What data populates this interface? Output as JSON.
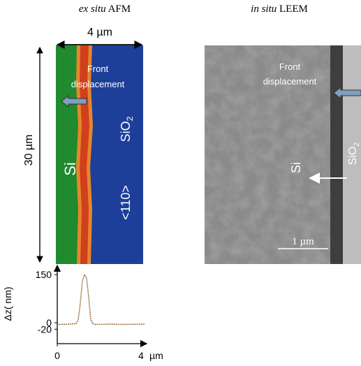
{
  "left_panel": {
    "title_italic": "ex situ",
    "title_rest": "AFM",
    "width_label": "4 µm",
    "height_label": "30 µm",
    "annotation_line1": "Front",
    "annotation_line2": "displacement",
    "material_left": "Si",
    "orientation": "<110>",
    "material_right": "SiO",
    "material_right_subscript": "2"
  },
  "right_panel": {
    "title_italic": "in situ",
    "title_rest": "LEEM",
    "annotation_line1": "Front",
    "annotation_line2": "displacement",
    "material_left": "Si",
    "material_right": "SiO",
    "material_right_subscript": "2",
    "scale_label": "1 µm"
  },
  "chart_data": {
    "type": "line",
    "y_label": "Δz( nm)",
    "x_label": "µm",
    "xlim": [
      0,
      4.27
    ],
    "ylim": [
      -65,
      183
    ],
    "xticks": [
      0,
      4
    ],
    "yticks": [
      150,
      0,
      -20
    ],
    "x": [
      0,
      0.3,
      0.6,
      0.9,
      1.0,
      1.1,
      1.2,
      1.3,
      1.4,
      1.5,
      1.6,
      1.7,
      1.8,
      2.1,
      2.5,
      3,
      3.5,
      4,
      4.2
    ],
    "series": [
      {
        "color": "#9a6a3a",
        "values": [
          -5,
          -5,
          -4,
          -3,
          10,
          60,
          130,
          150,
          140,
          80,
          10,
          -3,
          -5,
          -5,
          -4,
          -5,
          -5,
          -4,
          -5
        ]
      }
    ]
  }
}
